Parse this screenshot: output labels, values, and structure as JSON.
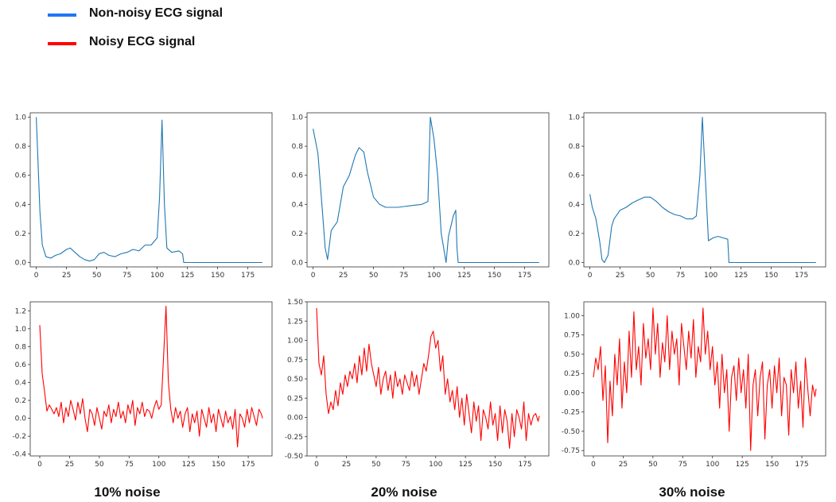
{
  "legend": {
    "items": [
      {
        "label": "Non-noisy ECG signal",
        "color": "#1f77f4"
      },
      {
        "label": "Noisy ECG signal",
        "color": "#ff0000"
      }
    ]
  },
  "captions": [
    "10% noise",
    "20% noise",
    "30% noise"
  ],
  "chart_data": [
    {
      "type": "line",
      "series_color": "#1f77b4",
      "xlim": [
        -5,
        195
      ],
      "ylim": [
        -0.03,
        1.03
      ],
      "xticks": [
        0,
        25,
        50,
        75,
        100,
        125,
        150,
        175
      ],
      "yticks": [
        0.0,
        0.2,
        0.4,
        0.6,
        0.8,
        1.0
      ],
      "ytick_labels": [
        "0.0",
        "0.2",
        "0.4",
        "0.6",
        "0.8",
        "1.0"
      ],
      "x": [
        0,
        3,
        5,
        8,
        12,
        16,
        20,
        25,
        28,
        32,
        36,
        40,
        44,
        48,
        52,
        56,
        60,
        65,
        70,
        75,
        80,
        85,
        90,
        95,
        100,
        102,
        104,
        106,
        108,
        112,
        118,
        121,
        122,
        187
      ],
      "y": [
        1.0,
        0.35,
        0.12,
        0.04,
        0.03,
        0.05,
        0.06,
        0.09,
        0.1,
        0.07,
        0.04,
        0.02,
        0.01,
        0.02,
        0.06,
        0.07,
        0.05,
        0.04,
        0.06,
        0.07,
        0.09,
        0.08,
        0.12,
        0.12,
        0.17,
        0.45,
        0.98,
        0.4,
        0.1,
        0.07,
        0.08,
        0.06,
        0.0,
        0.0
      ]
    },
    {
      "type": "line",
      "series_color": "#1f77b4",
      "xlim": [
        -5,
        195
      ],
      "ylim": [
        -0.03,
        1.03
      ],
      "xticks": [
        0,
        25,
        50,
        75,
        100,
        125,
        150,
        175
      ],
      "yticks": [
        0.0,
        0.2,
        0.4,
        0.6,
        0.8,
        1.0
      ],
      "ytick_labels": [
        "0.0",
        "0.2",
        "0.4",
        "0.6",
        "0.8",
        "1.0"
      ],
      "x": [
        0,
        4,
        8,
        10,
        12,
        15,
        20,
        25,
        30,
        35,
        38,
        42,
        45,
        50,
        55,
        60,
        70,
        80,
        90,
        95,
        97,
        100,
        103,
        106,
        110,
        112,
        116,
        118,
        119,
        120,
        187
      ],
      "y": [
        0.92,
        0.75,
        0.32,
        0.1,
        0.02,
        0.22,
        0.28,
        0.52,
        0.6,
        0.74,
        0.79,
        0.76,
        0.62,
        0.45,
        0.4,
        0.38,
        0.38,
        0.39,
        0.4,
        0.42,
        1.0,
        0.85,
        0.6,
        0.2,
        0.0,
        0.18,
        0.32,
        0.36,
        0.1,
        0.0,
        0.0
      ]
    },
    {
      "type": "line",
      "series_color": "#1f77b4",
      "xlim": [
        -5,
        195
      ],
      "ylim": [
        -0.03,
        1.03
      ],
      "xticks": [
        0,
        25,
        50,
        75,
        100,
        125,
        150,
        175
      ],
      "yticks": [
        0.0,
        0.2,
        0.4,
        0.6,
        0.8,
        1.0
      ],
      "ytick_labels": [
        "0.0",
        "0.2",
        "0.4",
        "0.6",
        "0.8",
        "1.0"
      ],
      "x": [
        0,
        2,
        5,
        8,
        10,
        12,
        15,
        18,
        20,
        25,
        30,
        35,
        40,
        45,
        50,
        55,
        60,
        65,
        70,
        75,
        80,
        85,
        88,
        91,
        93,
        96,
        98,
        102,
        106,
        110,
        114,
        115,
        187
      ],
      "y": [
        0.47,
        0.38,
        0.3,
        0.15,
        0.02,
        0.0,
        0.05,
        0.25,
        0.3,
        0.36,
        0.38,
        0.41,
        0.43,
        0.45,
        0.45,
        0.42,
        0.38,
        0.35,
        0.33,
        0.32,
        0.3,
        0.3,
        0.32,
        0.6,
        1.0,
        0.5,
        0.15,
        0.17,
        0.18,
        0.17,
        0.16,
        0.0,
        0.0
      ]
    },
    {
      "type": "line",
      "series_color": "#ff0000",
      "xlim": [
        -8,
        195
      ],
      "ylim": [
        -0.42,
        1.3
      ],
      "xticks": [
        0,
        25,
        50,
        75,
        100,
        125,
        150,
        175
      ],
      "yticks": [
        -0.4,
        -0.2,
        0.0,
        0.2,
        0.4,
        0.6,
        0.8,
        1.0,
        1.2
      ],
      "ytick_labels": [
        "-0.4",
        "-0.2",
        "0.0",
        "0.2",
        "0.4",
        "0.6",
        "0.8",
        "1.0",
        "1.2"
      ],
      "x": [
        0,
        2,
        4,
        6,
        8,
        10,
        12,
        14,
        16,
        18,
        20,
        22,
        24,
        26,
        28,
        30,
        32,
        34,
        36,
        38,
        40,
        42,
        44,
        46,
        48,
        50,
        52,
        54,
        56,
        58,
        60,
        62,
        64,
        66,
        68,
        70,
        72,
        74,
        76,
        78,
        80,
        82,
        84,
        86,
        88,
        90,
        92,
        94,
        96,
        98,
        100,
        102,
        104,
        106,
        108,
        110,
        112,
        114,
        116,
        118,
        120,
        122,
        124,
        126,
        128,
        130,
        132,
        134,
        136,
        138,
        140,
        142,
        144,
        146,
        148,
        150,
        152,
        154,
        156,
        158,
        160,
        162,
        164,
        166,
        168,
        170,
        172,
        174,
        176,
        178,
        180,
        182,
        184,
        186,
        187
      ],
      "y": [
        1.04,
        0.5,
        0.3,
        0.08,
        0.15,
        0.1,
        0.05,
        0.12,
        0.02,
        0.18,
        -0.05,
        0.12,
        0.02,
        0.2,
        0.1,
        -0.02,
        0.18,
        0.05,
        0.22,
        0.0,
        -0.15,
        0.1,
        0.05,
        -0.08,
        0.12,
        0.0,
        -0.12,
        0.08,
        0.02,
        0.15,
        -0.05,
        0.1,
        0.02,
        0.18,
        0.0,
        0.08,
        -0.05,
        0.15,
        0.05,
        0.2,
        -0.08,
        0.12,
        0.05,
        0.18,
        0.02,
        0.1,
        0.08,
        0.0,
        0.12,
        0.2,
        0.1,
        0.15,
        0.7,
        1.25,
        0.4,
        0.1,
        -0.05,
        0.12,
        0.0,
        0.08,
        -0.1,
        0.05,
        0.12,
        -0.15,
        0.05,
        -0.05,
        0.08,
        -0.2,
        0.1,
        0.0,
        -0.1,
        0.12,
        -0.05,
        0.05,
        -0.15,
        0.1,
        0.0,
        -0.1,
        0.08,
        -0.05,
        0.02,
        -0.12,
        0.1,
        -0.32,
        0.05,
        0.0,
        -0.1,
        0.1,
        -0.05,
        0.12,
        0.02,
        -0.08,
        0.1,
        0.05,
        0.0
      ]
    },
    {
      "type": "line",
      "series_color": "#ff0000",
      "xlim": [
        -8,
        195
      ],
      "ylim": [
        -0.5,
        1.5
      ],
      "xticks": [
        0,
        25,
        50,
        75,
        100,
        125,
        150,
        175
      ],
      "yticks": [
        -0.5,
        -0.25,
        0.0,
        0.25,
        0.5,
        0.75,
        1.0,
        1.25,
        1.5
      ],
      "ytick_labels": [
        "-0.50",
        "-0.25",
        "0.00",
        "0.25",
        "0.50",
        "0.75",
        "1.00",
        "1.25",
        "1.50"
      ],
      "x": [
        0,
        2,
        4,
        6,
        8,
        10,
        12,
        14,
        16,
        18,
        20,
        22,
        24,
        26,
        28,
        30,
        32,
        34,
        36,
        38,
        40,
        42,
        44,
        46,
        48,
        50,
        52,
        54,
        56,
        58,
        60,
        62,
        64,
        66,
        68,
        70,
        72,
        74,
        76,
        78,
        80,
        82,
        84,
        86,
        88,
        90,
        92,
        94,
        96,
        98,
        100,
        102,
        104,
        106,
        108,
        110,
        112,
        114,
        116,
        118,
        120,
        122,
        124,
        126,
        128,
        130,
        132,
        134,
        136,
        138,
        140,
        142,
        144,
        146,
        148,
        150,
        152,
        154,
        156,
        158,
        160,
        162,
        164,
        166,
        168,
        170,
        172,
        174,
        176,
        178,
        180,
        182,
        184,
        186,
        187
      ],
      "y": [
        1.42,
        0.7,
        0.55,
        0.8,
        0.3,
        0.05,
        0.2,
        0.1,
        0.35,
        0.15,
        0.45,
        0.3,
        0.55,
        0.4,
        0.6,
        0.5,
        0.7,
        0.45,
        0.8,
        0.55,
        0.9,
        0.6,
        0.95,
        0.7,
        0.55,
        0.4,
        0.65,
        0.3,
        0.5,
        0.6,
        0.35,
        0.55,
        0.25,
        0.6,
        0.4,
        0.5,
        0.3,
        0.55,
        0.45,
        0.35,
        0.6,
        0.4,
        0.55,
        0.3,
        0.5,
        0.7,
        0.6,
        0.8,
        1.05,
        1.12,
        0.9,
        1.0,
        0.6,
        0.8,
        0.3,
        0.5,
        0.2,
        0.35,
        0.1,
        0.4,
        0.0,
        0.25,
        -0.1,
        0.3,
        0.05,
        -0.2,
        0.2,
        -0.05,
        0.15,
        -0.3,
        0.1,
        0.0,
        -0.15,
        0.2,
        -0.1,
        0.05,
        -0.3,
        0.15,
        -0.2,
        0.1,
        -0.05,
        -0.4,
        0.05,
        -0.25,
        0.1,
        0.0,
        -0.15,
        0.2,
        -0.3,
        0.05,
        -0.1,
        0.02,
        0.05,
        -0.05,
        0.02
      ]
    },
    {
      "type": "line",
      "series_color": "#ff0000",
      "xlim": [
        -8,
        195
      ],
      "ylim": [
        -0.82,
        1.18
      ],
      "xticks": [
        0,
        25,
        50,
        75,
        100,
        125,
        150,
        175
      ],
      "yticks": [
        -0.75,
        -0.5,
        -0.25,
        0.0,
        0.25,
        0.5,
        0.75,
        1.0
      ],
      "ytick_labels": [
        "-0.75",
        "-0.50",
        "-0.25",
        "0.00",
        "0.25",
        "0.50",
        "0.75",
        "1.00"
      ],
      "x": [
        0,
        2,
        4,
        6,
        8,
        10,
        12,
        14,
        16,
        18,
        20,
        22,
        24,
        26,
        28,
        30,
        32,
        34,
        36,
        38,
        40,
        42,
        44,
        46,
        48,
        50,
        52,
        54,
        56,
        58,
        60,
        62,
        64,
        66,
        68,
        70,
        72,
        74,
        76,
        78,
        80,
        82,
        84,
        86,
        88,
        90,
        92,
        94,
        96,
        98,
        100,
        102,
        104,
        106,
        108,
        110,
        112,
        114,
        116,
        118,
        120,
        122,
        124,
        126,
        128,
        130,
        132,
        134,
        136,
        138,
        140,
        142,
        144,
        146,
        148,
        150,
        152,
        154,
        156,
        158,
        160,
        162,
        164,
        166,
        168,
        170,
        172,
        174,
        176,
        178,
        180,
        182,
        184,
        186,
        187
      ],
      "y": [
        0.2,
        0.45,
        0.3,
        0.6,
        -0.1,
        0.35,
        -0.65,
        0.15,
        -0.3,
        0.5,
        0.1,
        0.7,
        -0.2,
        0.4,
        0.0,
        0.8,
        0.2,
        1.05,
        0.3,
        0.6,
        0.1,
        0.9,
        0.45,
        0.7,
        0.3,
        1.1,
        0.5,
        0.9,
        0.2,
        0.65,
        0.4,
        1.0,
        0.3,
        0.8,
        0.5,
        0.7,
        0.1,
        0.9,
        0.6,
        0.3,
        0.8,
        0.45,
        0.95,
        0.2,
        0.6,
        0.4,
        1.1,
        0.5,
        0.8,
        0.3,
        0.6,
        0.1,
        0.4,
        -0.2,
        0.5,
        0.0,
        0.3,
        -0.5,
        0.2,
        0.35,
        -0.1,
        0.45,
        0.0,
        0.3,
        -0.2,
        0.5,
        -0.75,
        0.1,
        0.3,
        -0.3,
        0.2,
        0.4,
        -0.6,
        0.1,
        0.3,
        -0.2,
        0.35,
        0.0,
        0.45,
        -0.3,
        0.2,
        0.1,
        -0.55,
        0.3,
        0.0,
        0.4,
        -0.2,
        0.15,
        -0.45,
        0.45,
        0.05,
        -0.3,
        0.1,
        -0.05,
        0.05
      ]
    }
  ]
}
